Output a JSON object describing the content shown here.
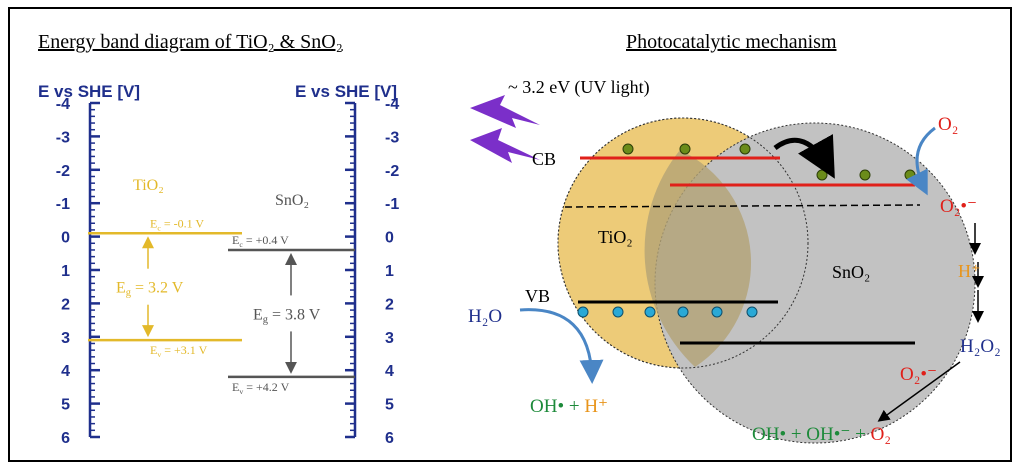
{
  "left_panel": {
    "title": "Energy band diagram of TiO₂ & SnO₂",
    "axes": [
      {
        "label": "E vs SHE [V]",
        "ticks": [
          -4,
          -3,
          -2,
          -1,
          0,
          1,
          2,
          3,
          4,
          5,
          6
        ]
      },
      {
        "label": "E vs SHE [V]",
        "ticks": [
          -4,
          -3,
          -2,
          -1,
          0,
          1,
          2,
          3,
          4,
          5,
          6
        ]
      }
    ],
    "materials": [
      {
        "name": "TiO₂",
        "cb": -0.1,
        "vb": 3.1,
        "cb_label": {
          "symbol": "E",
          "sub": "c",
          "text": " = -0.1 V"
        },
        "gap_label": {
          "symbol": "E",
          "sub": "g",
          "text": " = 3.2 V"
        },
        "vb_label": {
          "symbol": "E",
          "sub": "v",
          "text": " = +3.1 V"
        }
      },
      {
        "name": "SnO₂",
        "cb": 0.4,
        "vb": 4.2,
        "cb_label": {
          "symbol": "E",
          "sub": "c",
          "text": " = +0.4 V"
        },
        "gap_label": {
          "symbol": "E",
          "sub": "g",
          "text": " = 3.8 V"
        },
        "vb_label": {
          "symbol": "E",
          "sub": "v",
          "text": " = +4.2 V"
        }
      }
    ]
  },
  "right_panel": {
    "title": "Photocatalytic mechanism",
    "light": "~ 3.2 eV (UV light)",
    "cb": "CB",
    "vb": "VB",
    "tio2": "TiO₂",
    "sno2": "SnO₂",
    "o2": "O₂",
    "superoxide_1": "O₂•⁻",
    "h_plus": "H⁺",
    "h2o2": "H₂O₂",
    "superoxide_2": "O₂•⁻",
    "h2o": "H₂O",
    "oxidation_products": [
      "OH•",
      " + ",
      "H⁺"
    ],
    "final_products": [
      "OH• + OH•⁻ + ",
      "O₂"
    ]
  }
}
